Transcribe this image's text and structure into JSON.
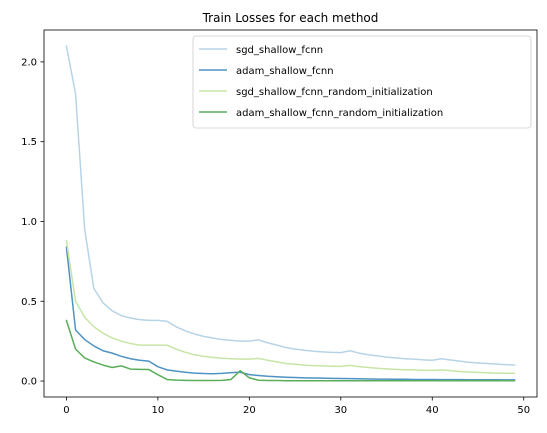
{
  "chart_data": {
    "type": "line",
    "title": "Train Losses for each method",
    "xlabel": "",
    "ylabel": "",
    "xlim": [
      -2.45,
      51.45
    ],
    "ylim": [
      -0.1,
      2.2
    ],
    "xticks": [
      0,
      10,
      20,
      30,
      40,
      50
    ],
    "yticks": [
      0.0,
      0.5,
      1.0,
      1.5,
      2.0
    ],
    "xtick_labels": [
      "0",
      "10",
      "20",
      "30",
      "40",
      "50"
    ],
    "ytick_labels": [
      "0.0",
      "0.5",
      "1.0",
      "1.5",
      "2.0"
    ],
    "grid": false,
    "legend_position": "upper-right",
    "x": [
      0,
      1,
      2,
      3,
      4,
      5,
      6,
      7,
      8,
      9,
      10,
      11,
      12,
      13,
      14,
      15,
      16,
      17,
      18,
      19,
      20,
      21,
      22,
      23,
      24,
      25,
      26,
      27,
      28,
      29,
      30,
      31,
      32,
      33,
      34,
      35,
      36,
      37,
      38,
      39,
      40,
      41,
      42,
      43,
      44,
      45,
      46,
      47,
      48,
      49
    ],
    "series": [
      {
        "name": "sgd_shallow_fcnn",
        "color": "#b7d4e6",
        "values": [
          2.1,
          1.8,
          0.95,
          0.58,
          0.49,
          0.44,
          0.41,
          0.395,
          0.385,
          0.38,
          0.38,
          0.375,
          0.34,
          0.315,
          0.295,
          0.28,
          0.27,
          0.26,
          0.255,
          0.25,
          0.25,
          0.258,
          0.24,
          0.225,
          0.21,
          0.2,
          0.193,
          0.187,
          0.183,
          0.18,
          0.178,
          0.19,
          0.175,
          0.165,
          0.158,
          0.15,
          0.145,
          0.14,
          0.137,
          0.133,
          0.13,
          0.14,
          0.132,
          0.125,
          0.118,
          0.113,
          0.11,
          0.106,
          0.103,
          0.1
        ]
      },
      {
        "name": "adam_shallow_fcnn",
        "color": "#4e93c3",
        "values": [
          0.84,
          0.32,
          0.26,
          0.22,
          0.19,
          0.175,
          0.155,
          0.14,
          0.13,
          0.125,
          0.09,
          0.07,
          0.062,
          0.055,
          0.05,
          0.047,
          0.046,
          0.048,
          0.053,
          0.055,
          0.04,
          0.035,
          0.03,
          0.027,
          0.024,
          0.022,
          0.02,
          0.019,
          0.018,
          0.017,
          0.016,
          0.015,
          0.014,
          0.013,
          0.012,
          0.012,
          0.011,
          0.011,
          0.01,
          0.01,
          0.01,
          0.009,
          0.009,
          0.009,
          0.008,
          0.008,
          0.008,
          0.008,
          0.007,
          0.007
        ]
      },
      {
        "name": "sgd_shallow_fcnn_random_initialization",
        "color": "#c7e5a6",
        "values": [
          0.88,
          0.5,
          0.4,
          0.34,
          0.3,
          0.27,
          0.25,
          0.235,
          0.225,
          0.225,
          0.225,
          0.225,
          0.2,
          0.18,
          0.165,
          0.155,
          0.148,
          0.143,
          0.14,
          0.138,
          0.137,
          0.142,
          0.13,
          0.12,
          0.11,
          0.105,
          0.1,
          0.097,
          0.095,
          0.093,
          0.092,
          0.098,
          0.09,
          0.085,
          0.08,
          0.076,
          0.073,
          0.071,
          0.07,
          0.068,
          0.067,
          0.07,
          0.065,
          0.06,
          0.057,
          0.054,
          0.052,
          0.05,
          0.049,
          0.048
        ]
      },
      {
        "name": "adam_shallow_fcnn_random_initialization",
        "color": "#5aae5a",
        "values": [
          0.38,
          0.2,
          0.145,
          0.12,
          0.1,
          0.085,
          0.095,
          0.075,
          0.073,
          0.072,
          0.04,
          0.01,
          0.006,
          0.004,
          0.003,
          0.003,
          0.003,
          0.004,
          0.01,
          0.065,
          0.02,
          0.005,
          0.003,
          0.003,
          0.002,
          0.002,
          0.002,
          0.002,
          0.002,
          0.002,
          0.002,
          0.002,
          0.002,
          0.002,
          0.002,
          0.002,
          0.002,
          0.002,
          0.002,
          0.002,
          0.002,
          0.002,
          0.002,
          0.002,
          0.002,
          0.002,
          0.002,
          0.002,
          0.002,
          0.002
        ]
      }
    ]
  }
}
